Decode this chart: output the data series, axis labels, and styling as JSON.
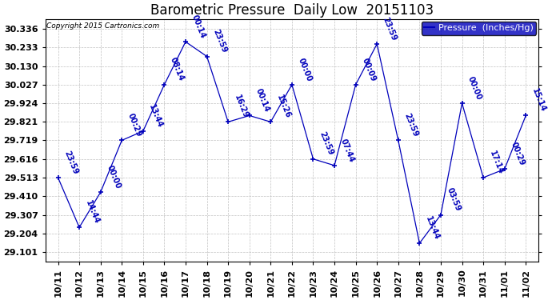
{
  "title": "Barometric Pressure  Daily Low  20151103",
  "copyright": "Copyright 2015 Cartronics.com",
  "legend_label": "Pressure  (Inches/Hg)",
  "x_labels": [
    "10/11",
    "10/12",
    "10/13",
    "10/14",
    "10/15",
    "10/16",
    "10/17",
    "10/18",
    "10/19",
    "10/20",
    "10/21",
    "10/22",
    "10/23",
    "10/24",
    "10/25",
    "10/26",
    "10/27",
    "10/28",
    "10/29",
    "10/30",
    "10/31",
    "11/01",
    "11/02"
  ],
  "y_values": [
    29.513,
    29.238,
    29.432,
    29.719,
    29.77,
    30.027,
    30.264,
    30.183,
    29.821,
    29.856,
    29.821,
    30.027,
    29.616,
    29.58,
    30.027,
    30.252,
    29.719,
    29.15,
    29.307,
    29.924,
    29.513,
    29.56,
    29.856
  ],
  "time_labels": [
    "23:59",
    "14:44",
    "00:00",
    "00:29",
    "13:44",
    "08:14",
    "00:14",
    "23:59",
    "16:29",
    "00:14",
    "15:26",
    "00:00",
    "23:59",
    "07:44",
    "00:09",
    "23:59",
    "23:59",
    "13:44",
    "03:59",
    "00:00",
    "17:14",
    "00:29",
    "15:14"
  ],
  "line_color": "#0000bb",
  "marker_color": "#0000bb",
  "bg_color": "#ffffff",
  "grid_color": "#c0c0c0",
  "ylim_min": 29.05,
  "ylim_max": 30.39,
  "yticks": [
    29.101,
    29.204,
    29.307,
    29.41,
    29.513,
    29.616,
    29.719,
    29.821,
    29.924,
    30.027,
    30.13,
    30.233,
    30.336
  ],
  "title_fontsize": 12,
  "annot_fontsize": 7,
  "tick_fontsize": 8,
  "legend_fontsize": 8
}
